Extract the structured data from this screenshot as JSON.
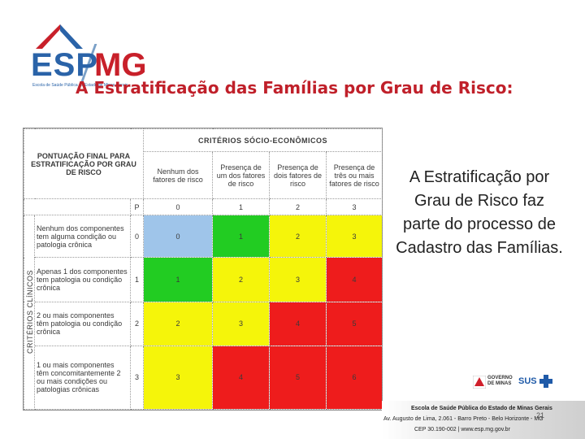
{
  "logo": {
    "esp": "ESP",
    "mg": "MG",
    "subtitle": "Escola de Saúde Pública do Estado de Minas Gerais"
  },
  "title": "A Estratificação das Famílias por Grau de Risco:",
  "table": {
    "socio_header": "CRITÉRIOS SÓCIO-ECONÔMICOS",
    "corner_label": "PONTUAÇÃO FINAL PARA ESTRATIFICAÇÃO POR GRAU DE RISCO",
    "clinical_header": "CRITÉRIOS CLÍNICOS",
    "p_label": "P",
    "socio_columns": [
      {
        "label": "Nenhum dos fatores de risco",
        "score": "0"
      },
      {
        "label": "Presença de um dos fatores de risco",
        "score": "1"
      },
      {
        "label": "Presença de dois fatores de risco",
        "score": "2"
      },
      {
        "label": "Presença de três ou mais fatores de risco",
        "score": "3"
      }
    ],
    "rows": [
      {
        "label": "Nenhum dos componentes tem alguma condição ou patologia crônica",
        "score": "0",
        "cells": [
          "0",
          "1",
          "2",
          "3"
        ],
        "colors": [
          "blue",
          "green",
          "yellow",
          "yellow"
        ]
      },
      {
        "label": "Apenas 1 dos componentes tem patologia ou condição crônica",
        "score": "1",
        "cells": [
          "1",
          "2",
          "3",
          "4"
        ],
        "colors": [
          "green",
          "yellow",
          "yellow",
          "red"
        ]
      },
      {
        "label": "2 ou mais componentes têm patologia ou condição crônica",
        "score": "2",
        "cells": [
          "2",
          "3",
          "4",
          "5"
        ],
        "colors": [
          "yellow",
          "yellow",
          "red",
          "red"
        ]
      },
      {
        "label": "1 ou mais componentes têm concomitantemente 2 ou mais condições ou patologias crônicas",
        "score": "3",
        "cells": [
          "3",
          "4",
          "5",
          "6"
        ],
        "colors": [
          "yellow",
          "red",
          "red",
          "red"
        ]
      }
    ],
    "color_map": {
      "blue": "#9fc5ea",
      "green": "#22cc22",
      "yellow": "#f5f50a",
      "red": "#ee1c1c"
    }
  },
  "side_text": "A Estratificação por Grau de Risco faz parte do processo de Cadastro das Famílias.",
  "footer": {
    "gov_logo": "GOVERNO DE MINAS",
    "sus_logo": "SUS",
    "line1": "Escola de Saúde Pública do Estado de Minas Gerais",
    "line2": "Av. Augusto de Lima, 2.061 - Barro Preto - Belo Horizonte - MG",
    "line3": "CEP 30.190-002 | www.esp.mg.gov.br"
  },
  "page_number": "21"
}
